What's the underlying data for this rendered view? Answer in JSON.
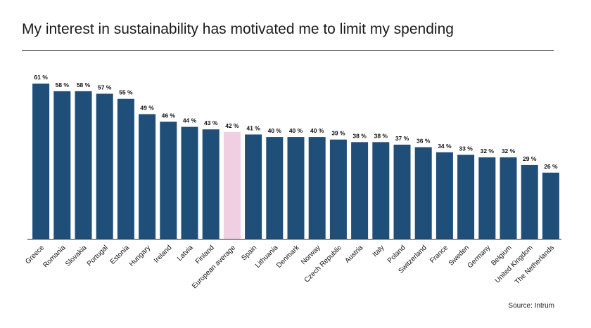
{
  "title": "My interest in sustainability has motivated me to limit my spending",
  "source": "Source: Intrum",
  "colors": {
    "bar": "#1f4e79",
    "highlight": "#f0cfe3",
    "axis": "#222222",
    "text": "#111111"
  },
  "chart_data": {
    "type": "bar",
    "title": "My interest in sustainability has motivated me to limit my spending",
    "xlabel": "",
    "ylabel": "",
    "ylim": [
      0,
      61
    ],
    "grid": false,
    "categories": [
      "Greece",
      "Romania",
      "Slovakia",
      "Portugal",
      "Estonia",
      "Hungary",
      "Ireland",
      "Latvia",
      "Finland",
      "European average",
      "Spain",
      "Lithuania",
      "Denmark",
      "Norway",
      "Czech Republic",
      "Austria",
      "Italy",
      "Poland",
      "Switzerland",
      "France",
      "Sweden",
      "Germany",
      "Belgium",
      "United Kingdom",
      "The Netherlands"
    ],
    "values": [
      61,
      58,
      58,
      57,
      55,
      49,
      46,
      44,
      43,
      42,
      41,
      40,
      40,
      40,
      39,
      38,
      38,
      37,
      36,
      34,
      33,
      32,
      32,
      29,
      26
    ],
    "value_labels": [
      "61 %",
      "58 %",
      "58 %",
      "57 %",
      "55 %",
      "49 %",
      "46 %",
      "44 %",
      "43 %",
      "42 %",
      "41 %",
      "40 %",
      "40 %",
      "40 %",
      "39 %",
      "38 %",
      "38 %",
      "37 %",
      "36 %",
      "34 %",
      "33 %",
      "32 %",
      "32 %",
      "29 %",
      "26 %"
    ],
    "highlight_category": "European average"
  }
}
